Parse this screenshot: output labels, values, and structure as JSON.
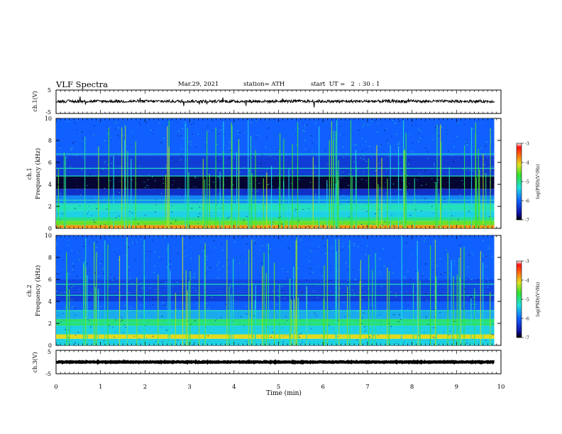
{
  "header": {
    "title": "VLF Spectra",
    "date": "Mar.29, 2021",
    "station": "station= ATH",
    "start": "start  UT =   2  : 30 : 1"
  },
  "panels": {
    "ch1": {
      "label": "ch.1(V)",
      "ticks": [
        "5",
        "-5"
      ]
    },
    "spec1": {
      "label_line1": "ch.1",
      "label_line2": "Frequency (kHz)",
      "cbar_label": "log(PSD)(V²/Hz)"
    },
    "spec2": {
      "label_line1": "ch.2",
      "label_line2": "Frequency (kHz)",
      "cbar_label": "log(PSD)(V²/Hz)"
    },
    "ch3": {
      "label": "ch.3(V)",
      "ticks": [
        "5",
        "-5"
      ]
    }
  },
  "colors": {
    "background": "#ffffff",
    "spectrogram_base": "#1a2fb8",
    "spectrogram_dark": "#050a50",
    "spectrogram_cyan": "#22c8e6",
    "spectrogram_green": "#7ce63c",
    "spectrogram_yellow": "#e6d83c",
    "trace": "#000000"
  },
  "chart_data": {
    "type": "heatmap",
    "xlabel": "Time (min)",
    "xlim": [
      0,
      10
    ],
    "x_ticks": [
      0,
      1,
      2,
      3,
      4,
      5,
      6,
      7,
      8,
      9,
      10
    ],
    "ylabel": "Frequency (kHz)",
    "ylim": [
      0,
      10
    ],
    "y_ticks": [
      0,
      2,
      4,
      6,
      8,
      10
    ],
    "data_end_min": 9.85,
    "colorbar": {
      "label": "log(PSD)(V²/Hz)",
      "range": [
        -7,
        -3
      ],
      "ticks": [
        -3,
        -4,
        -5,
        -6,
        -7
      ]
    },
    "channels": [
      {
        "name": "ch.1",
        "bands": [
          {
            "f": [
              0.0,
              0.3
            ],
            "level": -3.8
          },
          {
            "f": [
              0.3,
              0.7
            ],
            "level": -4.5
          },
          {
            "f": [
              0.7,
              1.0
            ],
            "level": -5.0
          },
          {
            "f": [
              1.0,
              1.6
            ],
            "level": -5.4
          },
          {
            "f": [
              1.6,
              2.2
            ],
            "level": -5.2
          },
          {
            "f": [
              2.2,
              3.0
            ],
            "level": -5.8
          },
          {
            "f": [
              3.0,
              3.6
            ],
            "level": -6.4
          },
          {
            "f": [
              3.6,
              4.8
            ],
            "level": -6.9
          },
          {
            "f": [
              4.8,
              6.6
            ],
            "level": -6.3
          },
          {
            "f": [
              6.6,
              10.0
            ],
            "level": -6.0
          }
        ],
        "lines_khz": [
          2.3,
          2.6,
          4.8,
          5.5,
          6.8
        ]
      },
      {
        "name": "ch.2",
        "bands": [
          {
            "f": [
              0.0,
              0.6
            ],
            "level": -5.4
          },
          {
            "f": [
              0.6,
              1.0
            ],
            "level": -4.1
          },
          {
            "f": [
              1.0,
              1.8
            ],
            "level": -5.4
          },
          {
            "f": [
              1.8,
              2.4
            ],
            "level": -4.9
          },
          {
            "f": [
              2.4,
              3.2
            ],
            "level": -5.6
          },
          {
            "f": [
              3.2,
              4.0
            ],
            "level": -6.0
          },
          {
            "f": [
              4.0,
              4.8
            ],
            "level": -6.3
          },
          {
            "f": [
              4.8,
              6.0
            ],
            "level": -6.2
          },
          {
            "f": [
              6.0,
              10.0
            ],
            "level": -6.0
          }
        ],
        "lines_khz": [
          2.1,
          3.2,
          4.6,
          5.6
        ]
      }
    ],
    "waveforms": [
      {
        "name": "ch.1(V)",
        "ylim": [
          -5,
          5
        ],
        "mean": 0.2,
        "noise": 0.6
      },
      {
        "name": "ch.3(V)",
        "ylim": [
          -5,
          5
        ],
        "mean": 0.0,
        "noise": 0.15
      }
    ]
  }
}
